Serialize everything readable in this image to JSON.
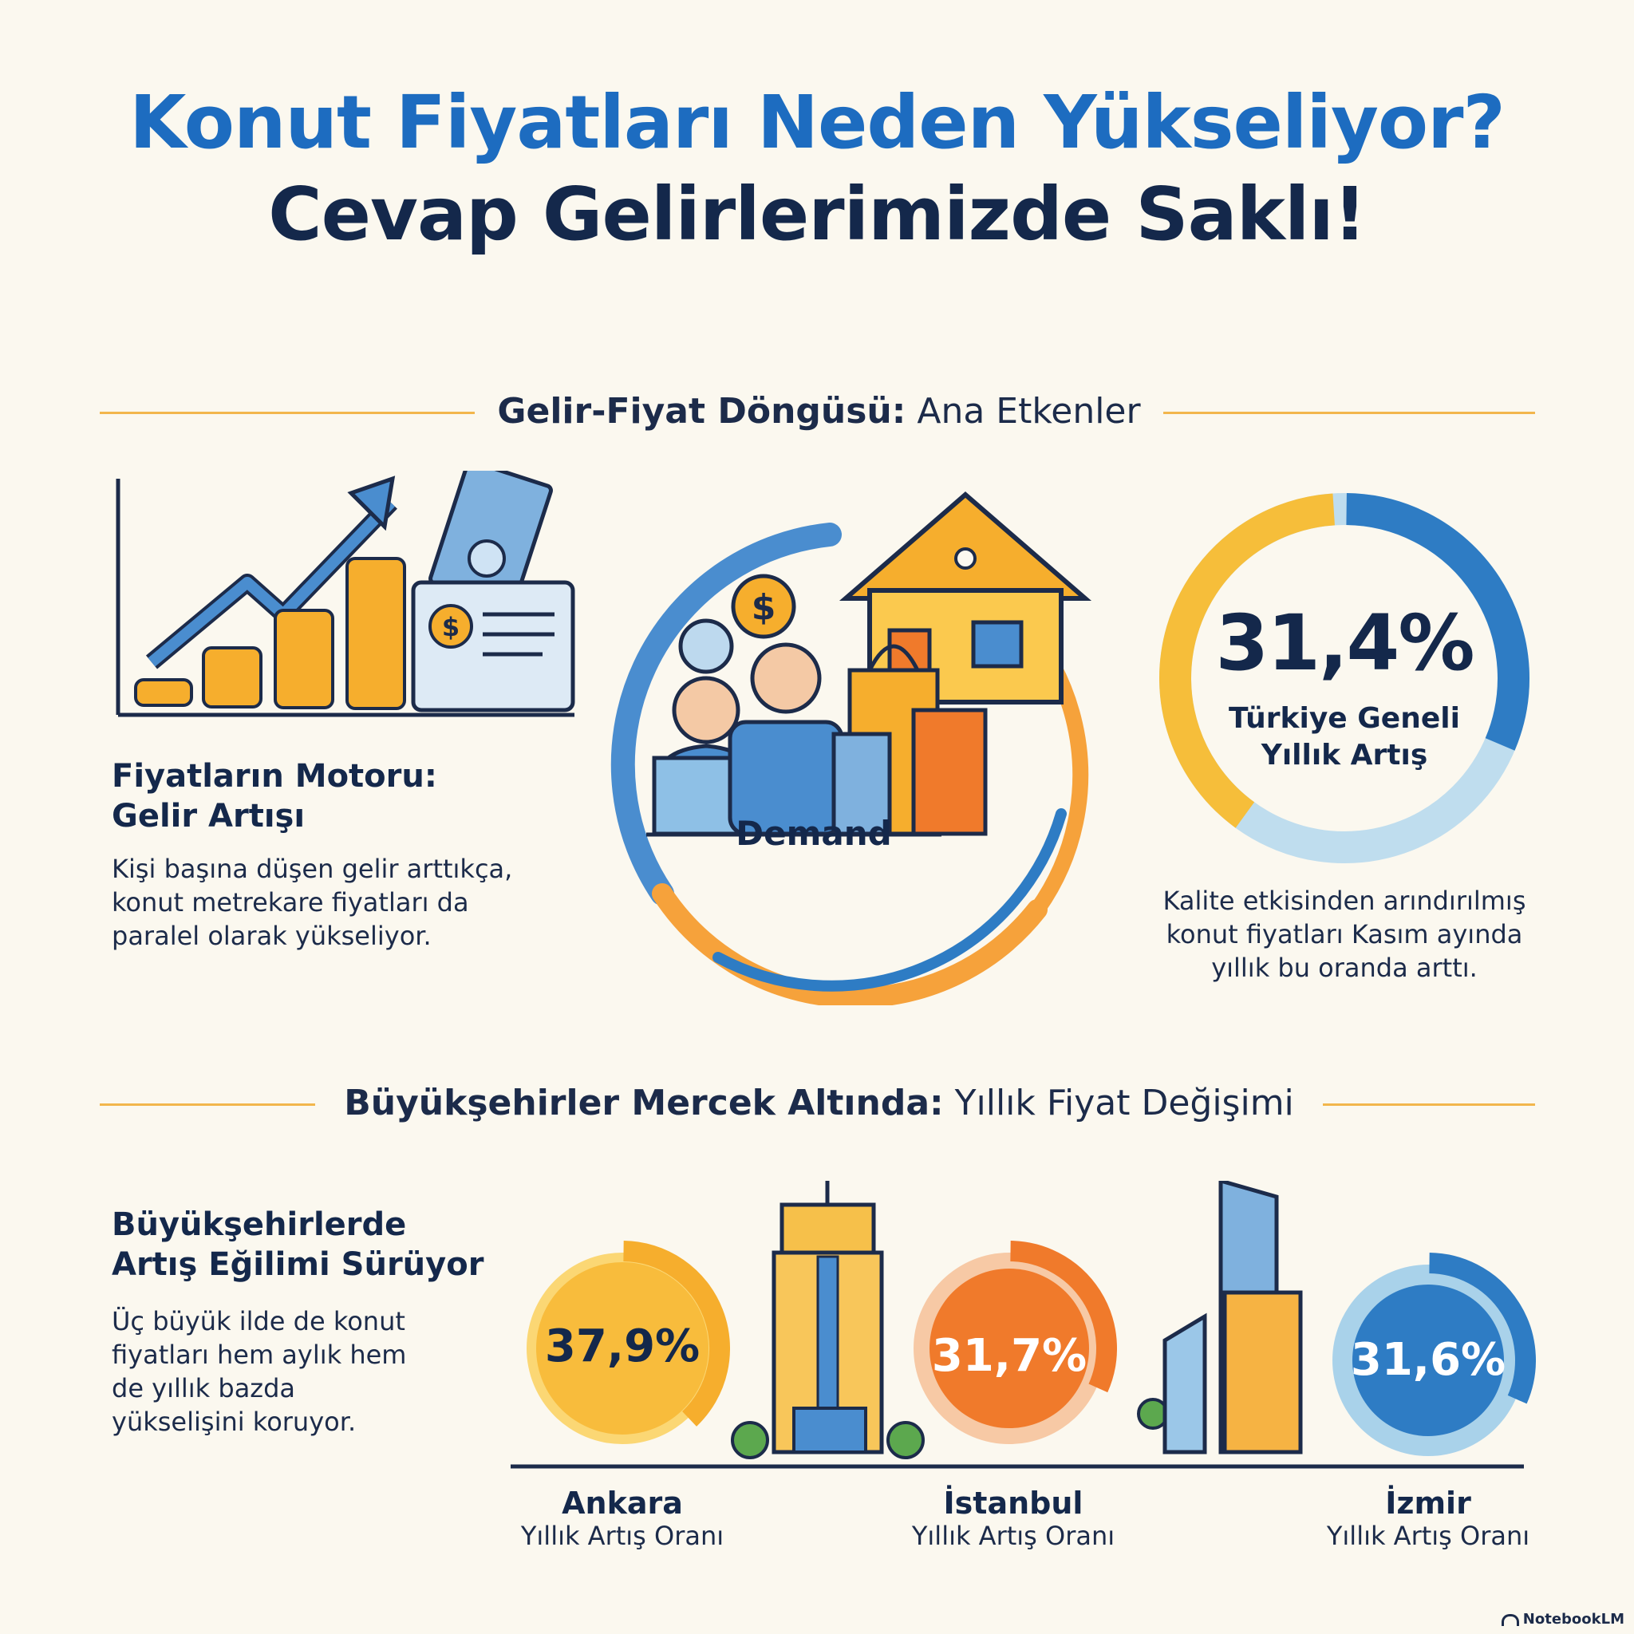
{
  "header": {
    "title_line1": "Konut Fiyatları Neden Yükseliyor?",
    "title_line2": "Cevap Gelirlerimizde Saklı!"
  },
  "section1": {
    "heading_bold": "Gelir-Fiyat Döngüsü:",
    "heading_light": "Ana Etkenler",
    "motor": {
      "title_line1": "Fiyatların Motoru:",
      "title_line2": "Gelir Artışı",
      "body_line1": "Kişi başına düşen gelir arttıkça,",
      "body_line2": "konut metrekare fiyatları da",
      "body_line3": "paralel olarak yükseliyor."
    },
    "demand_label": "Demand",
    "national": {
      "value": "31,4%",
      "fraction": 0.314,
      "label_line1": "Türkiye Geneli",
      "label_line2": "Yıllık Artış",
      "note_line1": "Kalite etkisinden arındırılmış",
      "note_line2": "konut fiyatları Kasım ayında",
      "note_line3": "yıllık bu oranda arttı."
    }
  },
  "section2": {
    "heading_bold": "Büyükşehirler Mercek Altında:",
    "heading_light": "Yıllık Fiyat Değişimi",
    "trend": {
      "title_line1": "Büyükşehirlerde",
      "title_line2": "Artış Eğilimi Sürüyor",
      "body_line1": "Üç büyük ilde de konut",
      "body_line2": "fiyatları hem aylık hem",
      "body_line3": "de yıllık bazda",
      "body_line4": "yükselişini koruyor."
    },
    "cities": [
      {
        "name": "Ankara",
        "sub": "Yıllık Artış Oranı",
        "value": "37,9%",
        "fraction": 0.379,
        "color": "#F6AE2D",
        "light": "#FBD774"
      },
      {
        "name": "İstanbul",
        "sub": "Yıllık Artış Oranı",
        "value": "31,7%",
        "fraction": 0.317,
        "color": "#F07A2B",
        "light": "#F7C9A5"
      },
      {
        "name": "İzmir",
        "sub": "Yıllık Artış Oranı",
        "value": "31,6%",
        "fraction": 0.316,
        "color": "#2E7CC4",
        "light": "#A9D2EA"
      }
    ]
  },
  "footer": {
    "brand": "NotebookLM"
  },
  "colors": {
    "blue": "#1D6CC0",
    "navy": "#14284B",
    "gold": "#F6AE2D",
    "orange": "#F07A2B",
    "light_blue": "#A9D2EA",
    "divider": "#F2B64C"
  }
}
